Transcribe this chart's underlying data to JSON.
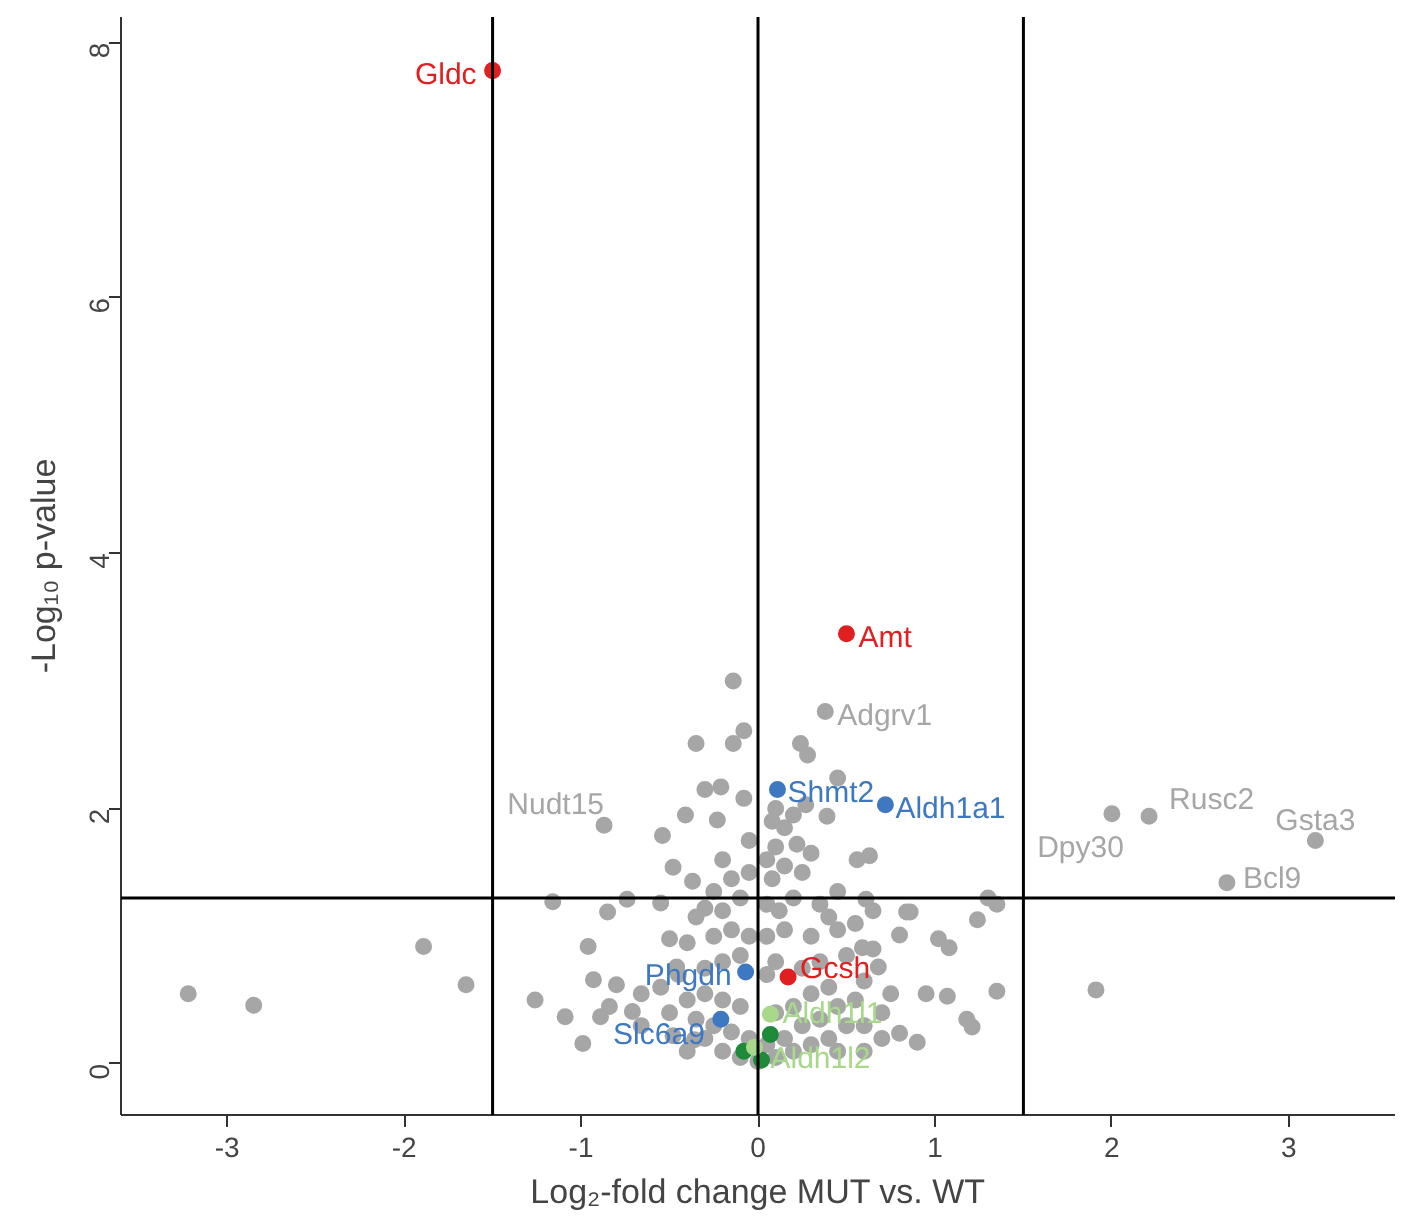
{
  "chart_data": {
    "type": "scatter",
    "xlabel": "Log₂-fold change MUT vs. WT",
    "ylabel": "-Log₁₀ p-value",
    "xlim": [
      -3.6,
      3.6
    ],
    "ylim": [
      -0.4,
      8.2
    ],
    "xticks": [
      -3,
      -2,
      -1,
      0,
      1,
      2,
      3
    ],
    "yticks": [
      0,
      2,
      4,
      6,
      8
    ],
    "grid": false,
    "marker": "circle",
    "ref_lines": [
      {
        "axis": "x",
        "value": 0,
        "color": "#000000"
      },
      {
        "axis": "x",
        "value": -1.5,
        "color": "#000000"
      },
      {
        "axis": "x",
        "value": 1.5,
        "color": "#000000"
      },
      {
        "axis": "y",
        "value": 1.3,
        "color": "#000000"
      }
    ],
    "series": [
      {
        "color": "#a6a6a6",
        "x": [
          -3.22,
          -2.85,
          -1.89,
          -1.65,
          -1.26,
          -1.16,
          -1.09,
          -0.99,
          -0.96,
          -0.85,
          -0.74,
          -0.14,
          -0.35,
          -0.14,
          -0.08,
          0.24,
          0.28,
          -0.3,
          -0.21,
          -0.08,
          0.45,
          -0.41,
          -0.54,
          -0.23,
          0.56,
          0.63,
          0.39,
          0.27,
          0.22,
          -0.48,
          -0.37,
          -0.2,
          -0.55,
          -0.3,
          0.61,
          0.84,
          0.86,
          1.3,
          1.35,
          1.24,
          1.08,
          1.02,
          0.8,
          1.35,
          1.07,
          1.18,
          1.21,
          0.9,
          0.8,
          0.95,
          1.91,
          0.68,
          0.59,
          -0.84,
          -0.71,
          -0.66,
          -0.8,
          -0.93,
          -0.5,
          -0.46,
          -0.89,
          -0.66,
          -0.36,
          -0.48,
          -0.3,
          -0.2,
          -0.1,
          0.0,
          0.1,
          0.2,
          0.3,
          0.4,
          0.5,
          -0.35,
          -0.25,
          -0.15,
          -0.05,
          0.05,
          0.15,
          0.25,
          0.35,
          0.45,
          0.55,
          -0.4,
          -0.3,
          -0.2,
          -0.1,
          0.1,
          0.2,
          0.3,
          0.4,
          0.6,
          -0.45,
          -0.3,
          -0.2,
          -0.1,
          0.05,
          0.1,
          0.25,
          0.35,
          0.5,
          0.65,
          -0.4,
          -0.25,
          -0.15,
          -0.05,
          0.05,
          0.15,
          0.3,
          0.45,
          0.55,
          -0.35,
          -0.2,
          -0.1,
          0.05,
          0.12,
          0.2,
          0.35,
          0.45,
          -0.15,
          -0.05,
          0.08,
          0.15,
          0.25,
          0.1,
          0.15,
          0.08,
          0.2,
          -0.05,
          0.3,
          0.1,
          0.05,
          -0.25,
          0.4,
          0.6,
          0.7,
          0.75,
          -0.5,
          -0.55,
          0.65,
          0.7,
          0.6,
          0.45,
          -0.4
        ],
        "values": [
          0.55,
          0.46,
          0.92,
          0.62,
          0.5,
          1.27,
          0.37,
          0.16,
          0.92,
          1.19,
          1.29,
          3.0,
          2.51,
          2.51,
          2.61,
          2.51,
          2.42,
          2.15,
          2.17,
          2.08,
          2.24,
          1.95,
          1.79,
          1.91,
          1.6,
          1.63,
          1.94,
          2.03,
          1.72,
          1.54,
          1.43,
          1.6,
          1.26,
          1.22,
          1.29,
          1.19,
          1.19,
          1.3,
          1.25,
          1.13,
          0.91,
          0.98,
          1.01,
          0.57,
          0.53,
          0.35,
          0.29,
          0.17,
          0.24,
          0.55,
          0.58,
          0.76,
          0.91,
          0.45,
          0.41,
          0.55,
          0.62,
          0.66,
          0.98,
          0.76,
          0.37,
          0.3,
          0.19,
          0.22,
          0.2,
          0.1,
          0.05,
          0.02,
          0.05,
          0.1,
          0.15,
          0.2,
          0.3,
          0.35,
          0.3,
          0.25,
          0.2,
          0.15,
          0.2,
          0.3,
          0.35,
          0.45,
          0.5,
          0.5,
          0.55,
          0.5,
          0.45,
          0.4,
          0.45,
          0.55,
          0.6,
          0.65,
          0.7,
          0.75,
          0.8,
          0.85,
          0.7,
          0.8,
          0.75,
          0.8,
          0.85,
          0.9,
          0.95,
          1.0,
          1.05,
          1.0,
          1.0,
          1.05,
          1.0,
          1.05,
          1.1,
          1.15,
          1.2,
          1.3,
          1.25,
          1.2,
          1.3,
          1.25,
          1.35,
          1.45,
          1.5,
          1.45,
          1.55,
          1.5,
          1.7,
          1.85,
          1.9,
          1.95,
          1.75,
          1.65,
          2.0,
          1.6,
          1.35,
          1.15,
          0.3,
          0.4,
          0.55,
          0.4,
          0.6,
          1.2,
          0.2,
          0.1,
          0.1,
          0.1
        ]
      },
      {
        "color": "#1e8a3a",
        "x": [
          0.07,
          -0.08,
          0.02
        ],
        "values": [
          0.23,
          0.1,
          0.03
        ]
      },
      {
        "name": "Gldc",
        "color": "#e02020",
        "x": [
          -1.5
        ],
        "values": [
          7.78
        ]
      },
      {
        "name": "Amt",
        "color": "#e02020",
        "x": [
          0.5
        ],
        "values": [
          3.37
        ]
      },
      {
        "name": "Gcsh",
        "color": "#e02020",
        "x": [
          0.17
        ],
        "values": [
          0.68
        ]
      },
      {
        "name": "Shmt2",
        "color": "#3e78c0",
        "x": [
          0.11
        ],
        "values": [
          2.15
        ]
      },
      {
        "name": "Aldh1a1",
        "color": "#3e78c0",
        "x": [
          0.72
        ],
        "values": [
          2.03
        ]
      },
      {
        "name": "Phgdh",
        "color": "#3e78c0",
        "x": [
          -0.07
        ],
        "values": [
          0.72
        ]
      },
      {
        "name": "Slc6a9",
        "color": "#3e78c0",
        "x": [
          -0.21
        ],
        "values": [
          0.35
        ]
      },
      {
        "name": "Aldh1l1",
        "color": "#a8d88a",
        "x": [
          0.07
        ],
        "values": [
          0.39
        ]
      },
      {
        "name": "Aldh1l2",
        "color": "#a8d88a",
        "x": [
          -0.02
        ],
        "values": [
          0.13
        ]
      },
      {
        "name": "Adgrv1",
        "color": "#a6a6a6",
        "x": [
          0.38
        ],
        "values": [
          2.76
        ]
      },
      {
        "name": "Nudt15",
        "color": "#a6a6a6",
        "x": [
          -0.87
        ],
        "values": [
          1.87
        ]
      },
      {
        "name": "Dpy30",
        "color": "#a6a6a6",
        "x": [
          2.0
        ],
        "values": [
          1.96
        ]
      },
      {
        "name": "Rusc2",
        "color": "#a6a6a6",
        "x": [
          2.21
        ],
        "values": [
          1.94
        ]
      },
      {
        "name": "Gsta3",
        "color": "#a6a6a6",
        "x": [
          3.15
        ],
        "values": [
          1.75
        ]
      },
      {
        "name": "Bcl9",
        "color": "#a6a6a6",
        "x": [
          2.65
        ],
        "values": [
          1.42
        ]
      }
    ]
  }
}
